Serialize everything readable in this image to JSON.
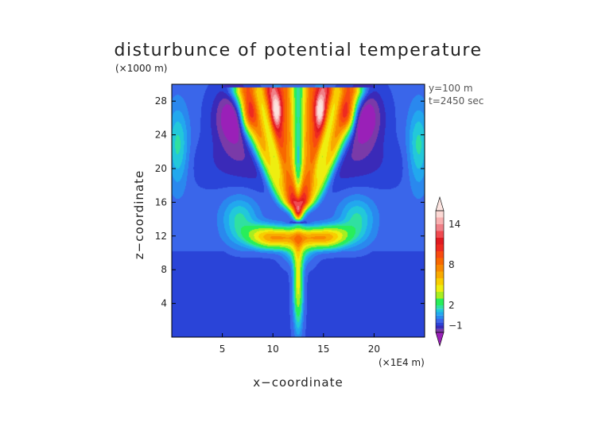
{
  "chart_data": {
    "type": "heatmap",
    "title": "disturbunce of potential temperature",
    "xlabel": "x−coordinate",
    "ylabel": "z−coordinate",
    "x_unit": "(×1E4 m)",
    "y_unit": "(×1000 m)",
    "annotation_lines": [
      "y=100 m",
      "t=2450 sec"
    ],
    "xlim": [
      0,
      25
    ],
    "ylim": [
      0,
      30
    ],
    "x_ticks": [
      5,
      10,
      15,
      20
    ],
    "y_ticks": [
      4,
      8,
      12,
      16,
      20,
      24,
      28
    ],
    "background_level": -0.5,
    "fields": [
      {
        "region": "upper side columns",
        "x": [
          1,
          24
        ],
        "z": [
          18,
          27
        ],
        "value": 1.5
      },
      {
        "region": "lower side lobes",
        "x": [
          6.5,
          18.5
        ],
        "z": [
          12,
          15.5
        ],
        "value": 1.5
      },
      {
        "region": "central plume",
        "x": [
          12.5
        ],
        "z": [
          3,
          10
        ],
        "value": 4
      },
      {
        "region": "plume shoulders",
        "x": [
          10,
          15
        ],
        "z": [
          11.5
        ],
        "value": 5
      },
      {
        "region": "outer bands",
        "x": [
          7.5,
          17.5
        ],
        "z": [
          20,
          29
        ],
        "value": 9
      },
      {
        "region": "inner bands",
        "x": [
          10,
          15
        ],
        "z": [
          16,
          29
        ],
        "value": 12
      },
      {
        "region": "peak cores",
        "x": [
          10.5,
          14.5
        ],
        "z": [
          26,
          29
        ],
        "value": 15
      },
      {
        "region": "upper troughs",
        "x": [
          6,
          19
        ],
        "z": [
          22,
          28
        ],
        "value": -2
      }
    ],
    "colorbar": {
      "min": -2,
      "max": 16,
      "levels": [
        -2,
        -1.5,
        -1,
        -0.5,
        0,
        0.5,
        1,
        1.5,
        2,
        3,
        4,
        5,
        6,
        7,
        8,
        9,
        10,
        11,
        12,
        13,
        14,
        15,
        16
      ],
      "colors": [
        "#7a3aa8",
        "#3a2ab8",
        "#2a44d8",
        "#3a66ea",
        "#2a88ee",
        "#22a8ee",
        "#22c8da",
        "#30e0a0",
        "#28ee5a",
        "#a8ee20",
        "#eeee10",
        "#f8ce00",
        "#f8aa00",
        "#f88800",
        "#f86800",
        "#f84a10",
        "#ee2a20",
        "#e01a20",
        "#f04a50",
        "#f08088",
        "#f8b0b0",
        "#fcd8d4"
      ],
      "under_color": "#9a20b8",
      "over_color": "#fce4e0",
      "tick_labels": [
        {
          "value": -1,
          "label": "−1"
        },
        {
          "value": 2,
          "label": "2"
        },
        {
          "value": 8,
          "label": "8"
        },
        {
          "value": 14,
          "label": "14"
        }
      ]
    }
  }
}
